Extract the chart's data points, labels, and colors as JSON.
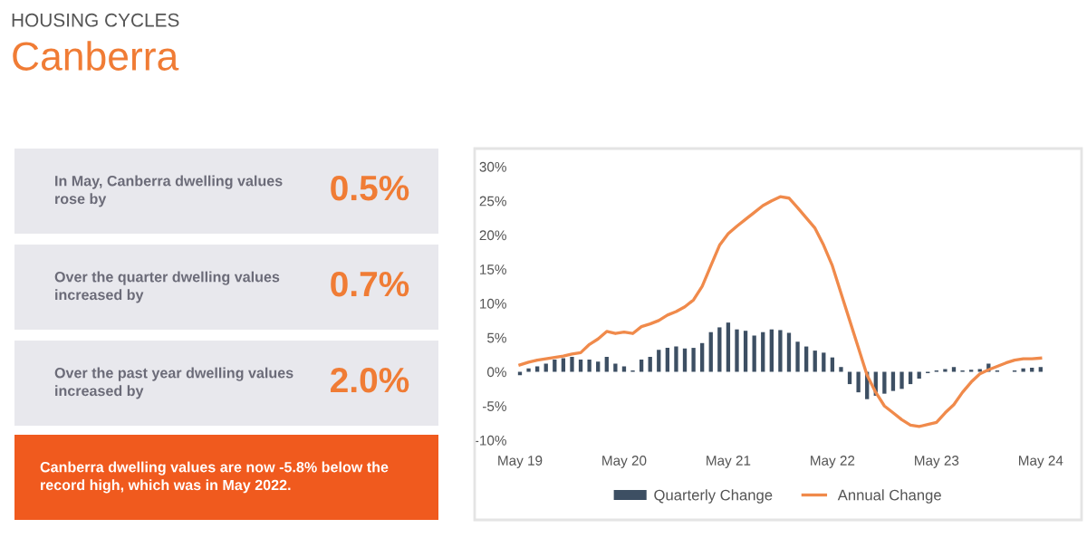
{
  "chart_data": [
    {
      "type": "other",
      "title": "HOUSING CYCLES",
      "subtitle": "Canberra",
      "annotations": [
        "In May, Canberra dwelling values\nrose by",
        "0.5%",
        "Over the quarter dwelling values\nincreased by",
        "0.7%",
        "Over the past year dwelling values\nincreased by",
        "2.0%",
        "Canberra dwelling values are now -5.8% below the\nrecord high, which was in May 2022."
      ]
    },
    {
      "type": "bar",
      "categories": [
        "May 19",
        null,
        null,
        null,
        null,
        null,
        null,
        null,
        null,
        null,
        null,
        null,
        "May 20",
        null,
        null,
        null,
        null,
        null,
        null,
        null,
        null,
        null,
        null,
        null,
        "May 21",
        null,
        null,
        null,
        null,
        null,
        null,
        null,
        null,
        null,
        null,
        null,
        "May 22",
        null,
        null,
        null,
        null,
        null,
        null,
        null,
        null,
        null,
        null,
        null,
        "May 23",
        null,
        null,
        null,
        null,
        null,
        null,
        null,
        null,
        null,
        null,
        null,
        "May 24"
      ],
      "series": [
        {
          "name": "Quarterly Change",
          "type": "bar",
          "color": "#3d4f63",
          "values": [
            -0.5,
            0.5,
            0.8,
            1.2,
            1.8,
            2.0,
            2.2,
            1.8,
            1.8,
            1.5,
            2.2,
            1.2,
            0.8,
            0.2,
            1.8,
            2.2,
            3.2,
            3.5,
            3.7,
            3.4,
            3.5,
            4.2,
            5.8,
            6.5,
            7.2,
            6.2,
            6.0,
            5.3,
            5.8,
            6.2,
            6.1,
            5.7,
            4.4,
            3.7,
            3.1,
            2.8,
            2.1,
            0.7,
            -1.8,
            -3.0,
            -4.0,
            -3.5,
            -3.2,
            -2.8,
            -2.5,
            -1.8,
            -1.0,
            -0.2,
            0.2,
            0.4,
            0.7,
            0.2,
            0.3,
            0.4,
            1.2,
            0.2,
            null,
            0.2,
            0.5,
            0.6,
            0.7
          ]
        },
        {
          "name": "Annual Change",
          "type": "line",
          "color": "#f08a4b",
          "values": [
            1.0,
            1.4,
            1.7,
            1.9,
            2.1,
            2.3,
            2.6,
            2.8,
            4.0,
            4.8,
            5.9,
            5.6,
            5.8,
            5.6,
            6.6,
            7.0,
            7.5,
            8.3,
            8.8,
            9.5,
            10.5,
            12.5,
            15.5,
            18.5,
            20.2,
            21.3,
            22.3,
            23.3,
            24.3,
            25.0,
            25.6,
            25.4,
            24.0,
            22.5,
            21.0,
            18.5,
            15.5,
            11.5,
            7.5,
            3.5,
            -0.5,
            -3.0,
            -5.0,
            -6.0,
            -7.0,
            -7.8,
            -8.0,
            -7.7,
            -7.4,
            -6.0,
            -4.8,
            -3.0,
            -1.5,
            -0.3,
            0.3,
            0.8,
            1.3,
            1.7,
            1.9,
            1.9,
            2.0
          ]
        }
      ],
      "ylim": [
        -10,
        30
      ],
      "yticks": [
        {
          "value": -10,
          "label": "-10%"
        },
        {
          "value": -5,
          "label": "-5%"
        },
        {
          "value": 0,
          "label": "0%"
        },
        {
          "value": 5,
          "label": "5%"
        },
        {
          "value": 10,
          "label": "10%"
        },
        {
          "value": 15,
          "label": "15%"
        },
        {
          "value": 20,
          "label": "20%"
        },
        {
          "value": 25,
          "label": "25%"
        },
        {
          "value": 30,
          "label": "30%"
        }
      ],
      "legend": "bottom",
      "grid": false
    }
  ]
}
